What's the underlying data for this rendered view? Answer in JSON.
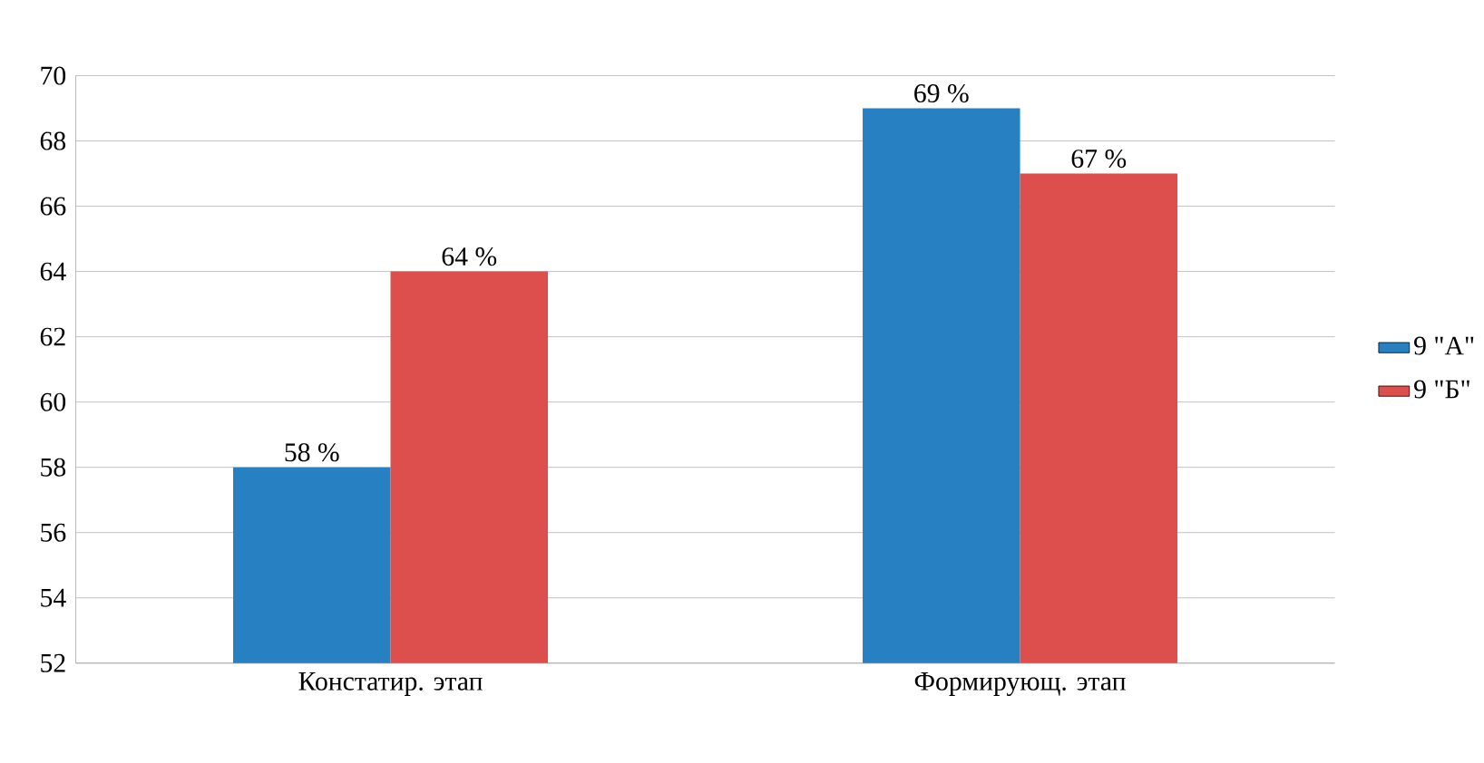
{
  "chart_data": {
    "type": "bar",
    "categories": [
      "Констатир. этап",
      "Формирующ. этап"
    ],
    "series": [
      {
        "name": "9 \"А\"",
        "color": "#2680c2",
        "values": [
          58,
          69
        ],
        "value_labels": [
          "58  %",
          "69 %"
        ]
      },
      {
        "name": "9 \"Б\"",
        "color": "#dc4f4c",
        "values": [
          64,
          67
        ],
        "value_labels": [
          "64  %",
          "67  %"
        ]
      }
    ],
    "ylim": [
      52,
      70
    ],
    "yticks": [
      52,
      54,
      56,
      58,
      60,
      62,
      64,
      66,
      68,
      70
    ],
    "grid": "y",
    "legend": "right"
  }
}
